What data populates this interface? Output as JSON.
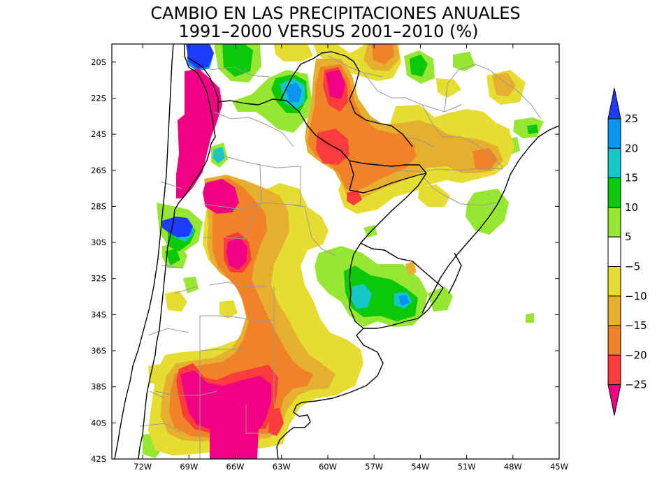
{
  "title": {
    "line1": "CAMBIO EN LAS PRECIPITACIONES ANUALES",
    "line2": "1991–2000 VERSUS 2001–2010 (%)"
  },
  "map": {
    "lon_range": [
      -74,
      -45
    ],
    "lat_range": [
      -42,
      -19
    ],
    "lat_ticks": [
      "20S",
      "22S",
      "24S",
      "26S",
      "28S",
      "30S",
      "32S",
      "34S",
      "36S",
      "38S",
      "40S",
      "42S"
    ],
    "lon_ticks": [
      "72W",
      "69W",
      "66W",
      "63W",
      "60W",
      "57W",
      "54W",
      "51W",
      "48W",
      "45W"
    ]
  },
  "colorbar": {
    "levels": [
      "25",
      "20",
      "15",
      "10",
      "5",
      "−5",
      "−10",
      "−15",
      "−20",
      "−25"
    ],
    "colors": {
      "gt25": "#1e3cff",
      "c20_25": "#0a96f0",
      "c15_20": "#14c8c8",
      "c10_15": "#0ac80a",
      "c5_10": "#96e632",
      "cm5_5": "#ffffff",
      "cm10_m5": "#e6dc32",
      "cm15_m10": "#e6af2d",
      "cm20_m15": "#f08228",
      "cm25_m20": "#fa3c3c",
      "lt_m25": "#f00082"
    }
  }
}
